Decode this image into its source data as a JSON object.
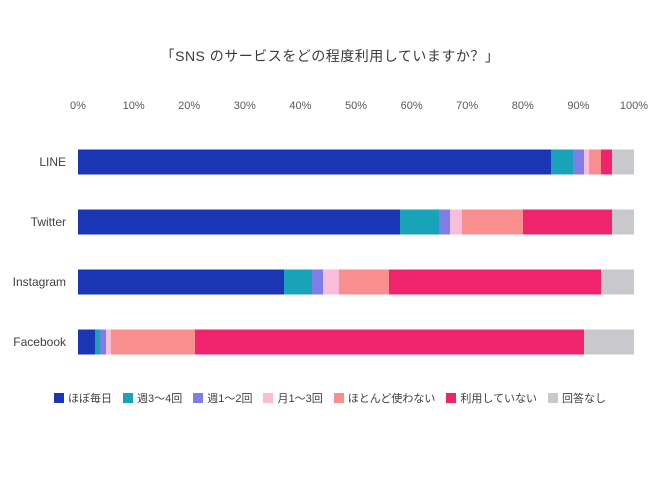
{
  "chart_data": {
    "type": "bar",
    "stacked": true,
    "orientation": "horizontal",
    "title": "「SNS のサービスをどの程度利用していますか？」",
    "categories": [
      "LINE",
      "Twitter",
      "Instagram",
      "Facebook"
    ],
    "x_ticks": [
      "0%",
      "10%",
      "20%",
      "30%",
      "40%",
      "50%",
      "60%",
      "70%",
      "80%",
      "90%",
      "100%"
    ],
    "xlim": [
      0,
      100
    ],
    "unit": "%",
    "grid": false,
    "legend_position": "bottom",
    "series": [
      {
        "name": "ほぼ毎日",
        "color": "#1a36b5",
        "values": [
          85,
          58,
          37,
          3
        ]
      },
      {
        "name": "週3〜4回",
        "color": "#19a3b9",
        "values": [
          4,
          7,
          5,
          1
        ]
      },
      {
        "name": "週1〜2回",
        "color": "#7e7ee6",
        "values": [
          2,
          2,
          2,
          1
        ]
      },
      {
        "name": "月1〜3回",
        "color": "#f9bcd9",
        "values": [
          1,
          2,
          3,
          1
        ]
      },
      {
        "name": "ほとんど使わない",
        "color": "#f98e8e",
        "values": [
          2,
          11,
          9,
          15
        ]
      },
      {
        "name": "利用していない",
        "color": "#f0246c",
        "values": [
          2,
          16,
          38,
          70
        ]
      },
      {
        "name": "回答なし",
        "color": "#c9c9cd",
        "values": [
          4,
          4,
          6,
          9
        ]
      }
    ]
  }
}
